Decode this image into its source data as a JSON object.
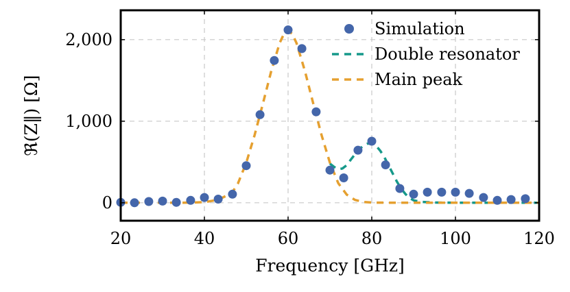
{
  "chart_data": {
    "type": "scatter+line",
    "xlabel": "Frequency [GHz]",
    "ylabel": "ℜ(Z‖) [Ω]",
    "xlim": [
      20,
      120
    ],
    "ylim": [
      -220,
      2360
    ],
    "xticks": [
      20,
      40,
      60,
      80,
      100,
      120
    ],
    "xtick_labels": [
      "20",
      "40",
      "60",
      "80",
      "100",
      "120"
    ],
    "yticks": [
      0,
      1000,
      2000
    ],
    "ytick_labels": [
      "0",
      "1,000",
      "2,000"
    ],
    "grid": true,
    "legend_position": "top-right",
    "series": [
      {
        "name": "Simulation",
        "kind": "scatter",
        "color": "#4466aa",
        "x": [
          20,
          23.3,
          26.7,
          30,
          33.3,
          36.7,
          40,
          43.3,
          46.7,
          50,
          53.3,
          56.7,
          60,
          63.3,
          66.7,
          70,
          73.3,
          76.7,
          80,
          83.3,
          86.7,
          90,
          93.3,
          96.7,
          100,
          103.3,
          106.7,
          110,
          113.3,
          116.7
        ],
        "y": [
          5,
          0,
          15,
          20,
          5,
          30,
          65,
          45,
          105,
          455,
          1080,
          1745,
          2120,
          1890,
          1115,
          400,
          305,
          645,
          755,
          465,
          175,
          105,
          130,
          130,
          130,
          115,
          65,
          30,
          40,
          50
        ]
      },
      {
        "name": "Double resonator",
        "kind": "dashed-line",
        "color": "#16998a",
        "x": [
          70,
          71,
          72,
          73,
          74,
          75,
          76,
          77,
          78,
          79,
          80,
          81,
          82,
          83,
          84,
          85,
          86,
          87,
          88,
          89,
          90,
          92,
          95,
          100,
          105,
          110,
          115,
          120
        ],
        "y": [
          480,
          440,
          410,
          420,
          460,
          530,
          595,
          655,
          700,
          725,
          730,
          700,
          640,
          560,
          460,
          360,
          260,
          175,
          110,
          60,
          30,
          10,
          3,
          0,
          0,
          0,
          0,
          0
        ]
      },
      {
        "name": "Main peak",
        "kind": "dashed-line",
        "color": "#e5a030",
        "x": [
          20,
          25,
          30,
          35,
          40,
          42,
          44,
          46,
          47,
          48,
          50,
          52,
          54,
          56,
          58,
          59,
          60,
          61,
          62,
          64,
          66,
          68,
          70,
          72,
          74,
          76,
          78,
          80,
          85,
          90,
          100,
          110,
          120
        ],
        "y": [
          0,
          0,
          0,
          0,
          8,
          25,
          55,
          105,
          155,
          235,
          490,
          830,
          1220,
          1620,
          1960,
          2070,
          2110,
          2070,
          1960,
          1620,
          1220,
          830,
          490,
          240,
          100,
          35,
          10,
          3,
          0,
          0,
          0,
          0,
          0
        ]
      }
    ]
  }
}
